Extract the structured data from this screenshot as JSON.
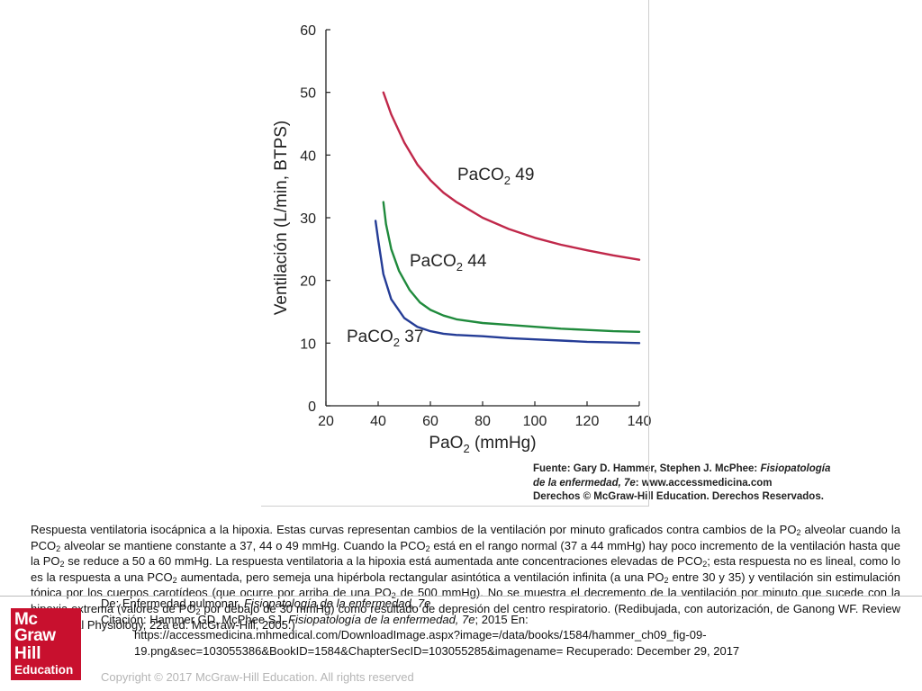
{
  "chart_data": {
    "type": "line",
    "xlabel": "PaO",
    "xlabel_sub": "2",
    "xlabel_unit": " (mmHg)",
    "ylabel": "Ventilación (L/min, BTPS)",
    "xlim": [
      20,
      140
    ],
    "ylim": [
      0,
      60
    ],
    "x_ticks": [
      20,
      40,
      60,
      80,
      100,
      120,
      140
    ],
    "y_ticks": [
      0,
      10,
      20,
      30,
      40,
      50,
      60
    ],
    "grid": false,
    "series": [
      {
        "name": "PaCO2 49",
        "label_main": "PaCO",
        "label_sub": "2",
        "label_tail": " 49",
        "color": "#c0284a",
        "x": [
          42,
          45,
          50,
          55,
          60,
          65,
          70,
          80,
          90,
          100,
          110,
          120,
          130,
          140
        ],
        "y": [
          50,
          46.5,
          42,
          38.5,
          36,
          34,
          32.5,
          30,
          28.2,
          26.8,
          25.7,
          24.8,
          24,
          23.3
        ]
      },
      {
        "name": "PaCO2 44",
        "label_main": "PaCO",
        "label_sub": "2",
        "label_tail": " 44",
        "color": "#1f8a3c",
        "x": [
          42,
          43,
          45,
          48,
          52,
          56,
          60,
          65,
          70,
          80,
          90,
          100,
          110,
          120,
          130,
          140
        ],
        "y": [
          32.5,
          29,
          25,
          21.5,
          18.5,
          16.5,
          15.3,
          14.4,
          13.8,
          13.2,
          12.9,
          12.6,
          12.3,
          12.1,
          11.9,
          11.8
        ]
      },
      {
        "name": "PaCO2 37",
        "label_main": "PaCO",
        "label_sub": "2",
        "label_tail": " 37",
        "color": "#243c96",
        "x": [
          39,
          40,
          42,
          45,
          50,
          55,
          60,
          65,
          70,
          80,
          90,
          100,
          110,
          120,
          130,
          140
        ],
        "y": [
          29.5,
          26.5,
          21,
          17,
          14,
          12.6,
          11.9,
          11.5,
          11.3,
          11.1,
          10.8,
          10.6,
          10.4,
          10.2,
          10.1,
          10
        ]
      }
    ]
  },
  "source": {
    "line1_prefix": "Fuente: Gary D. Hammer, Stephen J. McPhee: ",
    "line1_italic": "Fisiopatología",
    "line2_italic": "de la enfermedad, 7e",
    "line2_suffix": ": www.accessmedicina.com",
    "line3": "Derechos © McGraw-Hill Education. Derechos Reservados."
  },
  "caption": {
    "t1": "Respuesta ventilatoria isocápnica a la hipoxia. Estas curvas representan cambios de la ventilación por minuto graficados contra cambios de la PO",
    "t2": " alveolar cuando la PCO",
    "t3": " alveolar se mantiene constante a 37, 44 o 49 mmHg. Cuando la PCO",
    "t4": " está en el rango normal (37 a 44 mmHg) hay poco incremento de la ventilación hasta que la PO",
    "t5": " se reduce a 50 a 60 mmHg. La respuesta ventilatoria a la hipoxia está aumentada ante concentraciones elevadas de PCO",
    "t6": "; esta respuesta no es lineal, como lo es la respuesta a una PCO",
    "t7": " aumentada, pero semeja una hipérbola rectangular asintótica a ventilación infinita (a una PO",
    "t8": " entre 30 y 35) y ventilación sin estimulación tónica por los cuerpos carotídeos (que ocurre por arriba de una PO",
    "t9": " de 500 mmHg). No se muestra el decremento de la ventilación por minuto que sucede con la hipoxia extrema (valores de PO",
    "t10": " por debajo de 30 mmHg) como resultado de depresión del centro respiratorio. (Redibujada, con autorización, de Ganong WF. Review of Medical Physiology, 22a ed. McGraw-Hill, 2005.)",
    "sub": "2"
  },
  "logo": {
    "line1": "Mc",
    "line2": "Graw",
    "line3": "Hill",
    "line4": "Education"
  },
  "citation": {
    "from_prefix": "De: Enfermedad pulmonar, ",
    "from_italic": "Fisiopatología de la enfermedad, 7e",
    "cite_prefix": "Citación: Hammer GD, McPhee SJ. ",
    "cite_italic": "Fisiopatología de la enfermedad, 7e",
    "cite_suffix": "; 2015 En:",
    "url1": "https://accessmedicina.mhmedical.com/DownloadImage.aspx?image=/data/books/1584/hammer_ch09_fig-09-",
    "url2": "19.png&sec=103055386&BookID=1584&ChapterSecID=103055285&imagename= Recuperado: December 29, 2017"
  },
  "copyright": "Copyright © 2017 McGraw-Hill Education. All rights reserved"
}
